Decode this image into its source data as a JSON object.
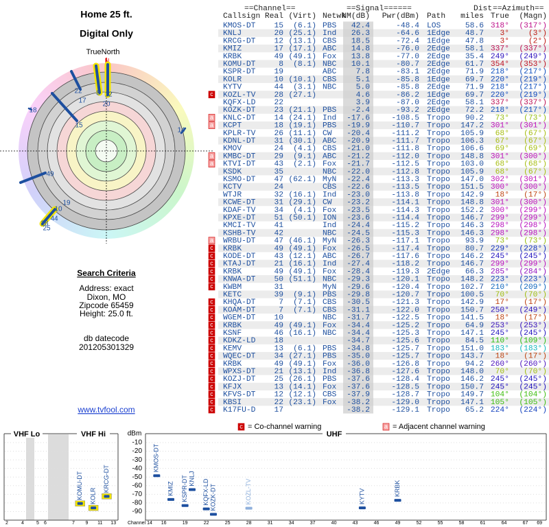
{
  "header": {
    "title": "Home 25 ft.",
    "subtitle": "Digital Only"
  },
  "polar": {
    "true_north": "TrueNorth",
    "north": "N",
    "labels": [
      "8",
      "12",
      "22",
      "17",
      "20",
      "15",
      "18",
      "14",
      "49",
      "19",
      "10",
      "44",
      "28",
      "25"
    ]
  },
  "search_criteria": {
    "title": "Search Criteria",
    "lines": [
      "Address: exact",
      "Dixon, MO",
      "Zipcode 65459",
      "Height: 25.0 ft."
    ],
    "db_label": "db datecode",
    "db_value": "201205301329"
  },
  "link": "www.tvfool.com",
  "table": {
    "group_headers": [
      "==Channel==",
      "==Signal======",
      "Dist",
      "==Azimuth=="
    ],
    "columns": [
      "Callsign",
      "Real",
      "(Virt)",
      "Netwk",
      "NM(dB)",
      "Pwr(dBm)",
      "Path",
      "miles",
      "True",
      "(Magn)"
    ],
    "rows": [
      [
        null,
        "KMOS-DT",
        "15",
        "(6.1)",
        "PBS",
        "42.4",
        "-48.4",
        "LOS",
        "58.6",
        "318°",
        "(317°)"
      ],
      [
        null,
        "KNLJ",
        "20",
        "(25.1)",
        "Ind",
        "26.3",
        "-64.6",
        "1Edge",
        "48.7",
        "3°",
        "(3°)"
      ],
      [
        null,
        "KRCG-DT",
        "12",
        "(13.1)",
        "CBS",
        "18.5",
        "-72.4",
        "1Edge",
        "47.8",
        "3°",
        "(2°)"
      ],
      [
        null,
        "KMIZ",
        "17",
        "(17.1)",
        "ABC",
        "14.8",
        "-76.0",
        "2Edge",
        "58.1",
        "337°",
        "(337°)"
      ],
      [
        null,
        "KRBK",
        "49",
        "(49.1)",
        "Fox",
        "13.8",
        "-77.0",
        "2Edge",
        "35.4",
        "249°",
        "(249°)"
      ],
      [
        null,
        "KOMU-DT",
        "8",
        "(8.1)",
        "NBC",
        "10.1",
        "-80.7",
        "2Edge",
        "61.7",
        "354°",
        "(353°)"
      ],
      [
        null,
        "KSPR-DT",
        "19",
        null,
        "ABC",
        "7.8",
        "-83.1",
        "2Edge",
        "71.9",
        "218°",
        "(217°)"
      ],
      [
        null,
        "KOLR",
        "10",
        "(10.1)",
        "CBS",
        "5.1",
        "-85.8",
        "1Edge",
        "69.7",
        "220°",
        "(219°)"
      ],
      [
        null,
        "KYTV",
        "44",
        "(3.1)",
        "NBC",
        "5.0",
        "-85.8",
        "2Edge",
        "71.9",
        "218°",
        "(217°)"
      ],
      [
        "c",
        "KOZL-TV",
        "28",
        "(27.1)",
        null,
        "4.6",
        "-86.2",
        "1Edge",
        "69.7",
        "220°",
        "(219°)"
      ],
      [
        null,
        "KQFX-LD",
        "22",
        null,
        null,
        "3.9",
        "-87.0",
        "2Edge",
        "58.1",
        "337°",
        "(337°)"
      ],
      [
        null,
        "KOZK-DT",
        "23",
        "(21.1)",
        "PBS",
        "-2.4",
        "-93.2",
        "2Edge",
        "72.2",
        "218°",
        "(217°)"
      ],
      [
        "a",
        "KNLC-DT",
        "14",
        "(24.1)",
        "Ind",
        "-17.6",
        "-108.5",
        "Tropo",
        "90.2",
        "73°",
        "(73°)"
      ],
      [
        "a",
        "KCPT",
        "18",
        "(19.1)",
        "PBS",
        "-19.9",
        "-110.7",
        "Tropo",
        "147.2",
        "301°",
        "(301°)"
      ],
      [
        null,
        "KPLR-TV",
        "26",
        "(11.1)",
        "CW",
        "-20.4",
        "-111.2",
        "Tropo",
        "105.9",
        "68°",
        "(67°)"
      ],
      [
        null,
        "KDNL-DT",
        "31",
        "(30.1)",
        "ABC",
        "-20.9",
        "-111.7",
        "Tropo",
        "106.3",
        "67°",
        "(67°)"
      ],
      [
        null,
        "KMOV",
        "24",
        "(4.1)",
        "CBS",
        "-21.0",
        "-111.8",
        "Tropo",
        "106.6",
        "69°",
        "(69°)"
      ],
      [
        "a",
        "KMBC-DT",
        "29",
        "(9.1)",
        "ABC",
        "-21.2",
        "-112.0",
        "Tropo",
        "148.8",
        "301°",
        "(300°)"
      ],
      [
        "a",
        "KTVI-DT",
        "43",
        "(2.1)",
        "Fox",
        "-21.7",
        "-112.5",
        "Tropo",
        "103.0",
        "68°",
        "(68°)"
      ],
      [
        null,
        "KSDK",
        "35",
        null,
        "NBC",
        "-22.0",
        "-112.8",
        "Tropo",
        "105.9",
        "68°",
        "(67°)"
      ],
      [
        null,
        "KSMO-DT",
        "47",
        "(62.1)",
        "MyN",
        "-22.4",
        "-113.3",
        "Tropo",
        "147.0",
        "302°",
        "(301°)"
      ],
      [
        null,
        "KCTV",
        "24",
        null,
        "CBS",
        "-22.6",
        "-113.5",
        "Tropo",
        "151.5",
        "300°",
        "(300°)"
      ],
      [
        null,
        "WTJR",
        "32",
        "(16.1)",
        "Ind",
        "-23.0",
        "-113.8",
        "Tropo",
        "142.9",
        "18°",
        "(17°)"
      ],
      [
        null,
        "KCWE-DT",
        "31",
        "(29.1)",
        "CW",
        "-23.2",
        "-114.1",
        "Tropo",
        "148.8",
        "301°",
        "(300°)"
      ],
      [
        null,
        "KDAF-TV",
        "34",
        "(4.1)",
        "Fox",
        "-23.5",
        "-114.3",
        "Tropo",
        "152.2",
        "300°",
        "(299°)"
      ],
      [
        null,
        "KPXE-DT",
        "51",
        "(50.1)",
        "ION",
        "-23.6",
        "-114.4",
        "Tropo",
        "146.7",
        "299°",
        "(299°)"
      ],
      [
        null,
        "KMCI-TV",
        "41",
        null,
        "Ind",
        "-24.4",
        "-115.2",
        "Tropo",
        "146.3",
        "298°",
        "(298°)"
      ],
      [
        null,
        "KSHB-TV",
        "42",
        null,
        "NBC",
        "-24.5",
        "-115.3",
        "Tropo",
        "146.3",
        "298°",
        "(298°)"
      ],
      [
        "a",
        "WRBU-DT",
        "47",
        "(46.1)",
        "MyN",
        "-26.3",
        "-117.1",
        "Tropo",
        "93.9",
        "73°",
        "(73°)"
      ],
      [
        "c",
        "KRBK",
        "49",
        "(49.1)",
        "Fox",
        "-26.5",
        "-117.4",
        "Tropo",
        "80.7",
        "229°",
        "(228°)"
      ],
      [
        "c",
        "KODE-DT",
        "43",
        "(12.1)",
        "ABC",
        "-26.7",
        "-117.6",
        "Tropo",
        "146.2",
        "245°",
        "(245°)"
      ],
      [
        "c",
        "KTAJ-DT",
        "21",
        "(16.1)",
        "Ind",
        "-27.4",
        "-118.2",
        "Tropo",
        "146.7",
        "299°",
        "(299°)"
      ],
      [
        "c",
        "KRBK",
        "49",
        "(49.1)",
        "Fox",
        "-28.4",
        "-119.3",
        "2Edge",
        "66.3",
        "285°",
        "(284°)"
      ],
      [
        "c",
        "KNWA-DT",
        "50",
        "(51.1)",
        "NBC",
        "-29.3",
        "-120.1",
        "Tropo",
        "148.2",
        "223°",
        "(223°)"
      ],
      [
        "c",
        "KWBM",
        "31",
        null,
        "MyN",
        "-29.6",
        "-120.4",
        "Tropo",
        "102.7",
        "210°",
        "(209°)"
      ],
      [
        null,
        "KETC",
        "39",
        "(9.1)",
        "PBS",
        "-29.8",
        "-120.7",
        "Tropo",
        "100.5",
        "70°",
        "(70°)"
      ],
      [
        "c",
        "KHQA-DT",
        "7",
        "(7.1)",
        "CBS",
        "-30.5",
        "-121.3",
        "Tropo",
        "142.9",
        "17°",
        "(17°)"
      ],
      [
        "c",
        "KOAM-DT",
        "7",
        "(7.1)",
        "CBS",
        "-31.1",
        "-122.0",
        "Tropo",
        "150.7",
        "250°",
        "(249°)"
      ],
      [
        "c",
        "WGEM-DT",
        "10",
        null,
        "NBC",
        "-31.7",
        "-122.5",
        "Tropo",
        "141.5",
        "18°",
        "(17°)"
      ],
      [
        "c",
        "KRBK",
        "49",
        "(49.1)",
        "Fox",
        "-34.4",
        "-125.2",
        "Tropo",
        "64.9",
        "253°",
        "(253°)"
      ],
      [
        "c",
        "KSNF",
        "46",
        "(16.1)",
        "NBC",
        "-34.4",
        "-125.3",
        "Tropo",
        "147.1",
        "245°",
        "(245°)"
      ],
      [
        "c",
        "KDKZ-LD",
        "18",
        null,
        null,
        "-34.7",
        "-125.6",
        "Tropo",
        "84.5",
        "110°",
        "(109°)"
      ],
      [
        "c",
        "KEMV",
        "13",
        "(6.1)",
        "PBS",
        "-34.8",
        "-125.7",
        "Tropo",
        "151.0",
        "183°",
        "(183°)"
      ],
      [
        "c",
        "WQEC-DT",
        "34",
        "(27.1)",
        "PBS",
        "-35.0",
        "-125.7",
        "Tropo",
        "143.7",
        "18°",
        "(17°)"
      ],
      [
        "c",
        "KRBK",
        "49",
        "(49.1)",
        "Fox",
        "-36.0",
        "-126.8",
        "Tropo",
        "94.2",
        "260°",
        "(260°)"
      ],
      [
        "c",
        "WPXS-DT",
        "21",
        "(13.1)",
        "Ind",
        "-36.8",
        "-127.6",
        "Tropo",
        "148.0",
        "70°",
        "(70°)"
      ],
      [
        "c",
        "KOZJ-DT",
        "25",
        "(26.1)",
        "PBS",
        "-37.6",
        "-128.4",
        "Tropo",
        "146.2",
        "245°",
        "(245°)"
      ],
      [
        "c",
        "KFJX",
        "13",
        "(14.1)",
        "Fox",
        "-37.6",
        "-128.5",
        "Tropo",
        "150.7",
        "245°",
        "(245°)"
      ],
      [
        "c",
        "KFVS-DT",
        "12",
        "(12.1)",
        "CBS",
        "-37.9",
        "-128.7",
        "Tropo",
        "149.7",
        "104°",
        "(104°)"
      ],
      [
        "c",
        "KBSI",
        "22",
        "(23.1)",
        "Fox",
        "-38.2",
        "-129.0",
        "Tropo",
        "147.1",
        "105°",
        "(105°)"
      ],
      [
        "c",
        "K17FU-D",
        "17",
        null,
        null,
        "-38.2",
        "-129.1",
        "Tropo",
        "65.2",
        "224°",
        "(224°)"
      ]
    ]
  },
  "warning_legend": [
    {
      "symbol": "c",
      "text": "= Co-channel warning"
    },
    {
      "symbol": "a",
      "text": "= Adjacent channel warning"
    }
  ],
  "spectrum": {
    "bands": [
      "VHF Lo",
      "VHF Hi",
      "UHF"
    ],
    "y_label": "dBm",
    "x_label": "Channel",
    "ylim": [
      -100,
      -10
    ],
    "yticks": [
      -10,
      -20,
      -30,
      -40,
      -50,
      -60,
      -70,
      -80,
      -90
    ],
    "vhf_ticks": [
      2,
      4,
      5,
      6,
      7,
      9,
      11,
      13
    ],
    "uhf_ticks": [
      14,
      16,
      19,
      22,
      25,
      28,
      31,
      34,
      37,
      40,
      43,
      46,
      49,
      52,
      55,
      58,
      61,
      64,
      67,
      69
    ],
    "stations": [
      {
        "label": "KMOS-DT",
        "channel": 15,
        "dbm": -48.4
      },
      {
        "label": "KOMU-DT",
        "channel": 8,
        "dbm": -80.7,
        "highlight": true
      },
      {
        "label": "KOLR",
        "channel": 10,
        "dbm": -85.8,
        "highlight": true
      },
      {
        "label": "KRCG-DT",
        "channel": 12,
        "dbm": -72.4,
        "highlight": true
      },
      {
        "label": "KMIZ",
        "channel": 17,
        "dbm": -76.0
      },
      {
        "label": "KSPR-DT",
        "channel": 19,
        "dbm": -83.1
      },
      {
        "label": "KNLJ",
        "channel": 20,
        "dbm": -64.6
      },
      {
        "label": "KQFX-LD",
        "channel": 22,
        "dbm": -87.0
      },
      {
        "label": "KOZK-DT",
        "channel": 23,
        "dbm": -93.2
      },
      {
        "label": "KOZL-TV",
        "channel": 28,
        "dbm": -86.2,
        "faded": true
      },
      {
        "label": "KYTV",
        "channel": 44,
        "dbm": -85.8
      },
      {
        "label": "KRBK",
        "channel": 49,
        "dbm": -77.0
      }
    ]
  }
}
